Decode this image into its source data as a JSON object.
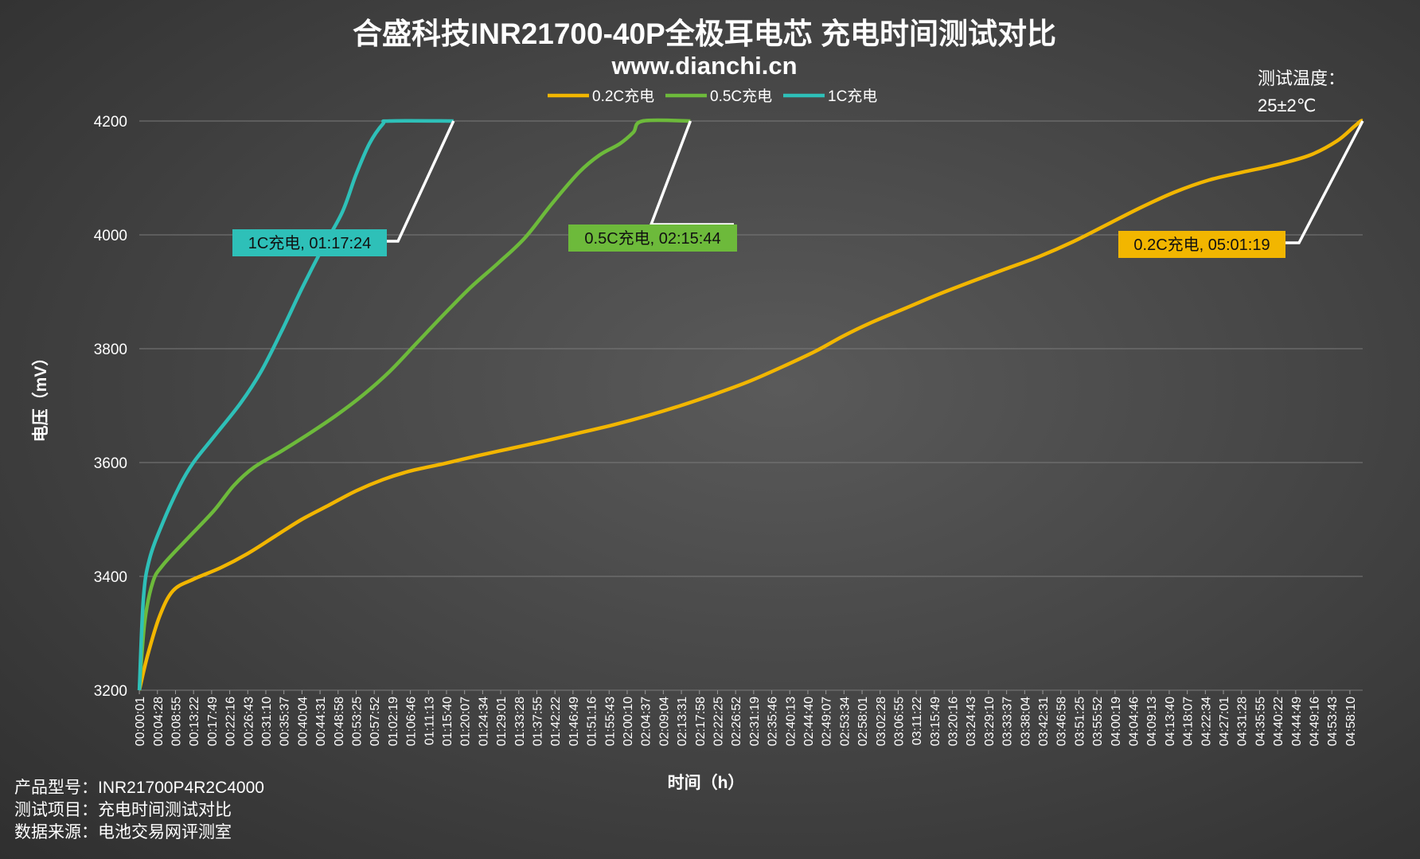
{
  "chart_data": {
    "type": "line",
    "title": "合盛科技INR21700-40P全极耳电芯 充电时间测试对比",
    "subtitle": "www.dianchi.cn",
    "xlabel": "时间（h）",
    "ylabel": "电压（mV）",
    "ylim": [
      3200,
      4200
    ],
    "yticks": [
      3200,
      3400,
      3600,
      3800,
      4000,
      4200
    ],
    "x_unit": "seconds",
    "x_tick_labels": [
      "00:00:01",
      "00:04:28",
      "00:08:55",
      "00:13:22",
      "00:17:49",
      "00:22:16",
      "00:26:43",
      "00:31:10",
      "00:35:37",
      "00:40:04",
      "00:44:31",
      "00:48:58",
      "00:53:25",
      "00:57:52",
      "01:02:19",
      "01:06:46",
      "01:11:13",
      "01:15:40",
      "01:20:07",
      "01:24:34",
      "01:29:01",
      "01:33:28",
      "01:37:55",
      "01:42:22",
      "01:46:49",
      "01:51:16",
      "01:55:43",
      "02:00:10",
      "02:04:37",
      "02:09:04",
      "02:13:31",
      "02:17:58",
      "02:22:25",
      "02:26:52",
      "02:31:19",
      "02:35:46",
      "02:40:13",
      "02:44:40",
      "02:49:07",
      "02:53:34",
      "02:58:01",
      "03:02:28",
      "03:06:55",
      "03:11:22",
      "03:15:49",
      "03:20:16",
      "03:24:43",
      "03:29:10",
      "03:33:37",
      "03:38:04",
      "03:42:31",
      "03:46:58",
      "03:51:25",
      "03:55:52",
      "04:00:19",
      "04:04:46",
      "04:09:13",
      "04:13:40",
      "04:18:07",
      "04:22:34",
      "04:27:01",
      "04:31:28",
      "04:35:55",
      "04:40:22",
      "04:44:49",
      "04:49:16",
      "04:53:43",
      "04:58:10"
    ],
    "grid": true,
    "legend_position": "top",
    "series": [
      {
        "name": "0.2C充电",
        "color": "#f2b600",
        "end_label": "0.2C充电, 05:01:19",
        "points": [
          [
            1,
            3200
          ],
          [
            120,
            3260
          ],
          [
            300,
            3330
          ],
          [
            500,
            3375
          ],
          [
            800,
            3395
          ],
          [
            1200,
            3415
          ],
          [
            1600,
            3440
          ],
          [
            2000,
            3470
          ],
          [
            2400,
            3500
          ],
          [
            2800,
            3525
          ],
          [
            3200,
            3550
          ],
          [
            3600,
            3570
          ],
          [
            4000,
            3585
          ],
          [
            4500,
            3598
          ],
          [
            5000,
            3612
          ],
          [
            5500,
            3625
          ],
          [
            6000,
            3638
          ],
          [
            6500,
            3652
          ],
          [
            7000,
            3666
          ],
          [
            7500,
            3682
          ],
          [
            8000,
            3700
          ],
          [
            8500,
            3720
          ],
          [
            9000,
            3742
          ],
          [
            9500,
            3768
          ],
          [
            10000,
            3796
          ],
          [
            10400,
            3822
          ],
          [
            10800,
            3845
          ],
          [
            11300,
            3870
          ],
          [
            11800,
            3895
          ],
          [
            12300,
            3918
          ],
          [
            12800,
            3940
          ],
          [
            13300,
            3962
          ],
          [
            13800,
            3988
          ],
          [
            14300,
            4018
          ],
          [
            14800,
            4048
          ],
          [
            15300,
            4075
          ],
          [
            15800,
            4096
          ],
          [
            16300,
            4110
          ],
          [
            16800,
            4123
          ],
          [
            17300,
            4140
          ],
          [
            17700,
            4165
          ],
          [
            17950,
            4190
          ],
          [
            18050,
            4200
          ],
          [
            18079,
            4200
          ]
        ]
      },
      {
        "name": "0.5C充电",
        "color": "#6dba3b",
        "end_label": "0.5C充电, 02:15:44",
        "points": [
          [
            1,
            3200
          ],
          [
            80,
            3320
          ],
          [
            200,
            3390
          ],
          [
            350,
            3420
          ],
          [
            700,
            3465
          ],
          [
            1100,
            3515
          ],
          [
            1400,
            3560
          ],
          [
            1700,
            3592
          ],
          [
            2100,
            3620
          ],
          [
            2500,
            3650
          ],
          [
            2900,
            3682
          ],
          [
            3300,
            3718
          ],
          [
            3700,
            3760
          ],
          [
            4100,
            3810
          ],
          [
            4500,
            3860
          ],
          [
            4900,
            3908
          ],
          [
            5300,
            3950
          ],
          [
            5700,
            3995
          ],
          [
            6100,
            4055
          ],
          [
            6500,
            4110
          ],
          [
            6800,
            4140
          ],
          [
            7100,
            4160
          ],
          [
            7300,
            4180
          ],
          [
            7440,
            4200
          ],
          [
            8144,
            4200
          ]
        ]
      },
      {
        "name": "1C充电",
        "color": "#2ec0b8",
        "end_label": "1C充电, 01:17:24",
        "points": [
          [
            1,
            3200
          ],
          [
            60,
            3360
          ],
          [
            150,
            3430
          ],
          [
            350,
            3495
          ],
          [
            600,
            3560
          ],
          [
            800,
            3600
          ],
          [
            1100,
            3645
          ],
          [
            1500,
            3705
          ],
          [
            1800,
            3760
          ],
          [
            2100,
            3830
          ],
          [
            2400,
            3905
          ],
          [
            2700,
            3975
          ],
          [
            3000,
            4040
          ],
          [
            3200,
            4105
          ],
          [
            3400,
            4160
          ],
          [
            3600,
            4195
          ],
          [
            3700,
            4200
          ],
          [
            4644,
            4200
          ]
        ]
      }
    ],
    "annotation": "测试温度：25±2℃"
  },
  "footer": {
    "model": "产品型号：INR21700P4R2C4000",
    "item": "测试项目：充电时间测试对比",
    "source": "数据来源：电池交易网评测室"
  }
}
